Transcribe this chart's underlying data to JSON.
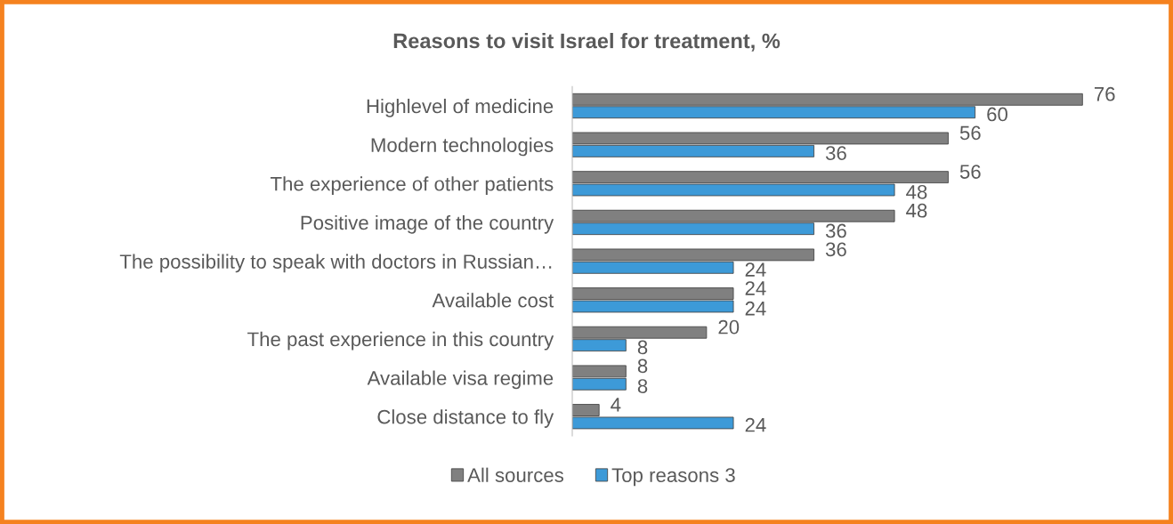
{
  "chart_data": {
    "type": "bar",
    "orientation": "horizontal",
    "title": "Reasons to visit Israel for treatment, %",
    "categories": [
      "Highlevel of medicine",
      "Modern technologies",
      "The experience of other patients",
      "Positive image of the country",
      "The possibility to speak with doctors in Russian…",
      "Available cost",
      "The past experience in this country",
      "Available visa regime",
      "Close distance to fly"
    ],
    "series": [
      {
        "name": "All sources",
        "color": "#808080",
        "values": [
          76,
          56,
          56,
          48,
          36,
          24,
          20,
          8,
          4
        ]
      },
      {
        "name": "Top reasons 3",
        "color": "#3d9ad8",
        "values": [
          60,
          36,
          48,
          36,
          24,
          24,
          8,
          8,
          24
        ]
      }
    ],
    "data_labels": true,
    "legend": "bottom",
    "tick_labels": "y"
  }
}
